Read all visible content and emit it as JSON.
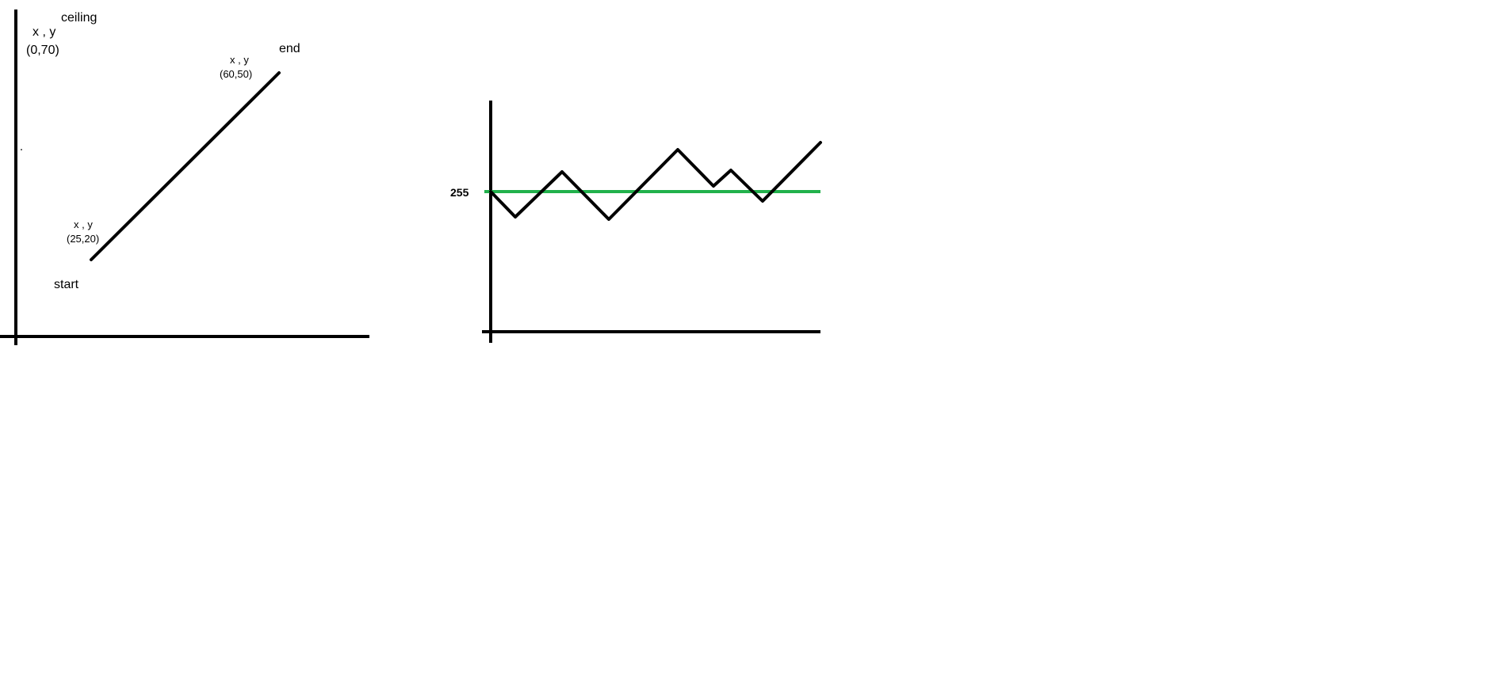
{
  "left_diagram": {
    "ceiling_label": "ceiling",
    "ceiling_xy": "x , y",
    "ceiling_coords": "(0,70)",
    "end_label": "end",
    "end_xy": "x , y",
    "end_coords": "(60,50)",
    "start_xy": "x , y",
    "start_coords": "(25,20)",
    "start_label": "start",
    "line_start": {
      "x": 25,
      "y": 20
    },
    "line_end": {
      "x": 60,
      "y": 50
    },
    "ceiling_point": {
      "x": 0,
      "y": 70
    }
  },
  "right_diagram": {
    "threshold_label": "255",
    "threshold_color": "#22b14c",
    "line_color": "#000000"
  }
}
